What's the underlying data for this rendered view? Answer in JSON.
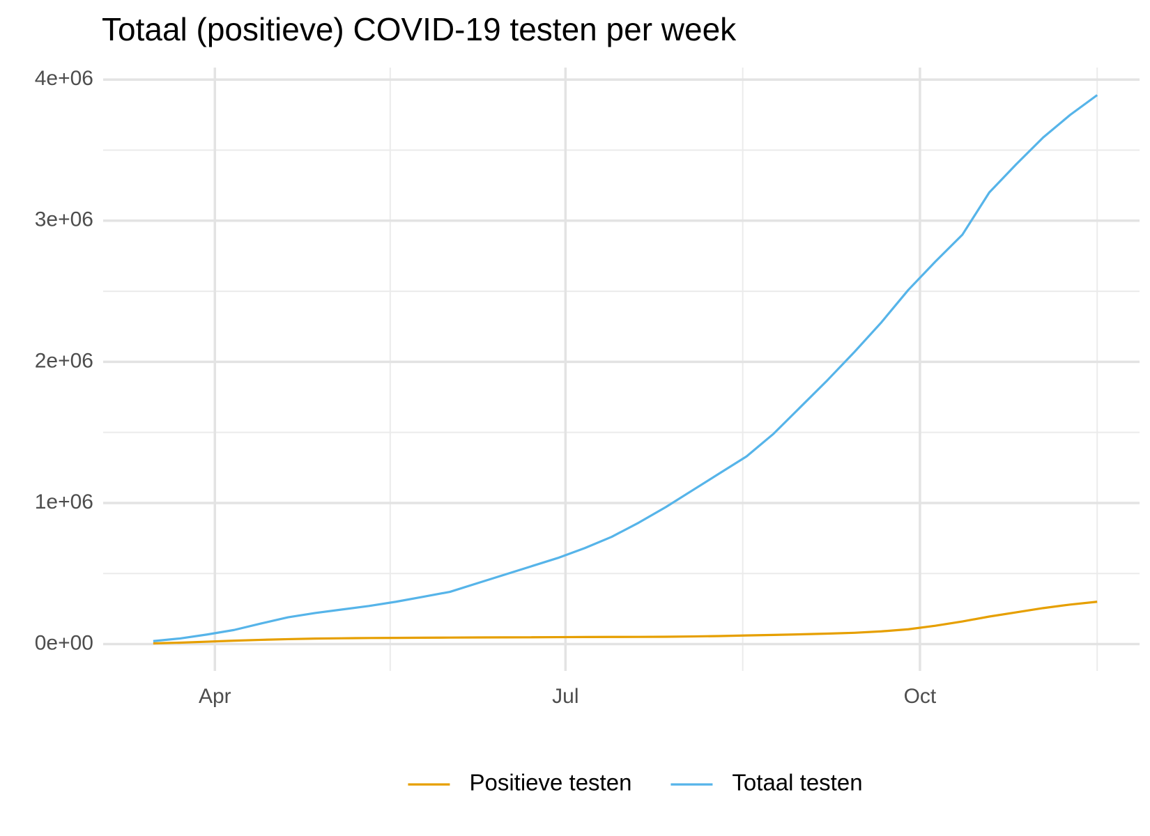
{
  "chart_data": {
    "type": "line",
    "title": "Totaal (positieve) COVID-19 testen per week",
    "x": [
      75,
      82,
      89,
      96,
      103,
      110,
      117,
      124,
      131,
      138,
      145,
      152,
      159,
      166,
      173,
      180,
      187,
      194,
      201,
      208,
      215,
      222,
      229,
      236,
      243,
      250,
      257,
      264,
      271,
      278,
      285,
      292,
      299,
      306,
      313,
      320
    ],
    "series": [
      {
        "name": "Positieve testen",
        "color": "#E69F00",
        "values": [
          5000,
          10000,
          17000,
          24000,
          30000,
          35000,
          39000,
          41000,
          43000,
          44000,
          45000,
          46000,
          47000,
          47500,
          48000,
          49000,
          50000,
          50500,
          51000,
          52000,
          54000,
          57000,
          61000,
          65000,
          69000,
          74000,
          80000,
          90000,
          105000,
          130000,
          160000,
          195000,
          225000,
          255000,
          280000,
          300000
        ]
      },
      {
        "name": "Totaal testen",
        "color": "#56B4E9",
        "values": [
          21000,
          40000,
          68000,
          100000,
          146000,
          190000,
          220000,
          245000,
          270000,
          300000,
          335000,
          370000,
          430000,
          490000,
          550000,
          610000,
          680000,
          760000,
          860000,
          970000,
          1090000,
          1210000,
          1330000,
          1490000,
          1680000,
          1870000,
          2070000,
          2280000,
          2510000,
          2710000,
          2900000,
          3200000,
          3400000,
          3590000,
          3750000,
          3890000
        ]
      }
    ],
    "xlim": [
      62,
      331
    ],
    "xticks": [
      {
        "value": 91,
        "label": "Apr"
      },
      {
        "value": 182,
        "label": "Jul"
      },
      {
        "value": 274,
        "label": "Oct"
      }
    ],
    "ylim": [
      -190000,
      4085000
    ],
    "yticks": [
      {
        "value": 0,
        "label": "0e+00"
      },
      {
        "value": 1000000,
        "label": "1e+06"
      },
      {
        "value": 2000000,
        "label": "2e+06"
      },
      {
        "value": 3000000,
        "label": "3e+06"
      },
      {
        "value": 4000000,
        "label": "4e+06"
      }
    ],
    "grid": true,
    "legend": "bottom"
  }
}
